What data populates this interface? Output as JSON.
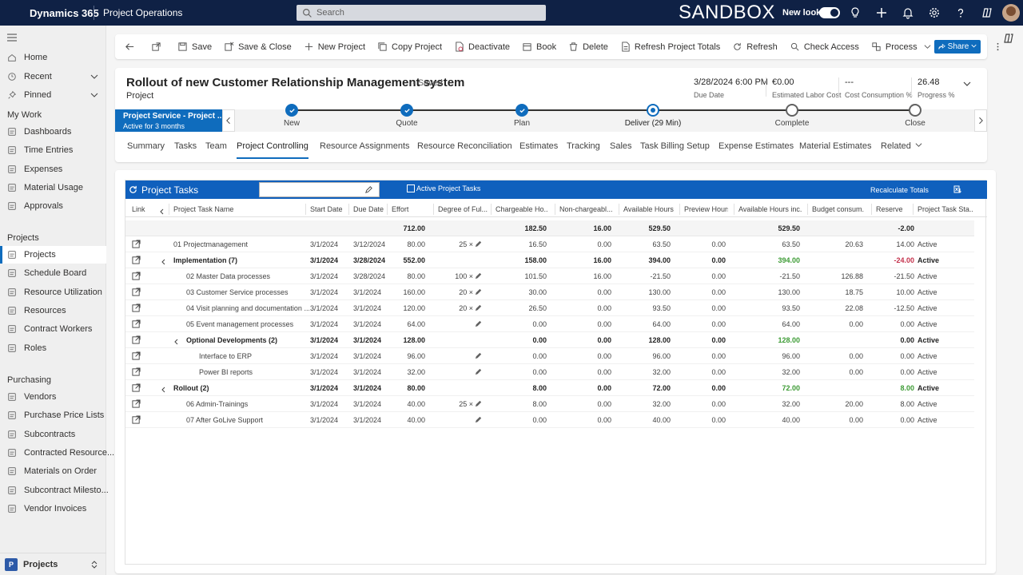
{
  "topbar": {
    "brand": "Dynamics 365",
    "app_name": "Project Operations",
    "search_placeholder": "Search",
    "environment": "SANDBOX",
    "new_look_label": "New look"
  },
  "sidebar": {
    "top_items": [
      {
        "label": "Home",
        "icon": "home-icon"
      },
      {
        "label": "Recent",
        "icon": "clock-icon"
      },
      {
        "label": "Pinned",
        "icon": "pin-icon"
      }
    ],
    "sections": [
      {
        "title": "My Work",
        "items": [
          "Dashboards",
          "Time Entries",
          "Expenses",
          "Material Usage",
          "Approvals"
        ]
      },
      {
        "title": "Projects",
        "items": [
          "Projects",
          "Schedule Board",
          "Resource Utilization",
          "Resources",
          "Contract Workers",
          "Roles"
        ]
      },
      {
        "title": "Purchasing",
        "items": [
          "Vendors",
          "Purchase Price Lists",
          "Subcontracts",
          "Contracted Resource...",
          "Materials on Order",
          "Subcontract Milesto...",
          "Vendor Invoices"
        ]
      }
    ],
    "area_badge": "P",
    "area_label": "Projects"
  },
  "commands": [
    "Save",
    "Save & Close",
    "New Project",
    "Copy Project",
    "Deactivate",
    "Book",
    "Delete",
    "Refresh Project Totals",
    "Refresh",
    "Check Access",
    "Process",
    "Share"
  ],
  "share_button": "Share",
  "header": {
    "title": "Rollout of new Customer Relationship Management system",
    "saved": "- Saved",
    "entity": "Project",
    "fields": [
      {
        "value": "3/28/2024 6:00 PM",
        "label": "Due Date"
      },
      {
        "value": "€0.00",
        "label": "Estimated Labor Cost"
      },
      {
        "value": "---",
        "label": "Cost Consumption %"
      },
      {
        "value": "26.48",
        "label": "Progress %"
      }
    ]
  },
  "bpf": {
    "stage_title": "Project Service - Project ...",
    "stage_sub": "Active for 3 months",
    "stages": [
      {
        "label": "New",
        "state": "done"
      },
      {
        "label": "Quote",
        "state": "done"
      },
      {
        "label": "Plan",
        "state": "done"
      },
      {
        "label": "Deliver  (29 Min)",
        "state": "current"
      },
      {
        "label": "Complete",
        "state": "todo"
      },
      {
        "label": "Close",
        "state": "todo"
      }
    ]
  },
  "tabs": [
    "Summary",
    "Tasks",
    "Team",
    "Project Controlling",
    "Resource Assignments",
    "Resource Reconciliation",
    "Estimates",
    "Tracking",
    "Sales",
    "Task Billing Setup",
    "Expense Estimates",
    "Material Estimates",
    "Related"
  ],
  "active_tab": "Project Controlling",
  "grid": {
    "title": "Project Tasks",
    "filter_label": "Active Project Tasks",
    "recalc_label": "Recalculate Totals",
    "columns": [
      "Link",
      "Project Task Name",
      "Start Date",
      "Due Date",
      "Effort",
      "Degree of Ful...",
      "Chargeable Ho...",
      "Non-chargeabl...",
      "Available Hours",
      "Preview Hours",
      "Available Hours inc...",
      "Budget consum...",
      "Reserve",
      "Project Task Sta..."
    ],
    "totals": {
      "effort": "712.00",
      "chargeable": "182.50",
      "nonchargeable": "16.00",
      "available": "529.50",
      "available_inc": "529.50",
      "reserve": "-2.00"
    },
    "rows": [
      {
        "name": "01 Projectmanagement",
        "indent": 0,
        "bold": false,
        "chevron": false,
        "start": "3/1/2024",
        "due": "3/12/2024",
        "effort": "80.00",
        "degree": "25 ×",
        "chargeable": "16.50",
        "nonchargeable": "0.00",
        "available": "63.50",
        "preview": "0.00",
        "available_inc": "63.50",
        "budget": "20.63",
        "reserve": "14.00",
        "status": "Active",
        "inc_color": "green",
        "res_color": "green"
      },
      {
        "name": "Implementation (7)",
        "indent": 0,
        "bold": true,
        "chevron": true,
        "start": "3/1/2024",
        "due": "3/28/2024",
        "effort": "552.00",
        "degree": "",
        "chargeable": "158.00",
        "nonchargeable": "16.00",
        "available": "394.00",
        "preview": "0.00",
        "available_inc": "394.00",
        "budget": "",
        "reserve": "-24.00",
        "status": "Active",
        "inc_color": "green",
        "res_color": "red"
      },
      {
        "name": "02 Master Data processes",
        "indent": 1,
        "bold": false,
        "chevron": false,
        "start": "3/1/2024",
        "due": "3/28/2024",
        "effort": "80.00",
        "degree": "100 ×",
        "chargeable": "101.50",
        "nonchargeable": "16.00",
        "available": "-21.50",
        "preview": "0.00",
        "available_inc": "-21.50",
        "budget": "126.88",
        "reserve": "-21.50",
        "status": "Active",
        "inc_color": "red",
        "res_color": "red"
      },
      {
        "name": "03 Customer Service processes",
        "indent": 1,
        "bold": false,
        "chevron": false,
        "start": "3/1/2024",
        "due": "3/1/2024",
        "effort": "160.00",
        "degree": "20 ×",
        "chargeable": "30.00",
        "nonchargeable": "0.00",
        "available": "130.00",
        "preview": "0.00",
        "available_inc": "130.00",
        "budget": "18.75",
        "reserve": "10.00",
        "status": "Active",
        "inc_color": "green",
        "res_color": "green"
      },
      {
        "name": "04 Visit planning and documentation ...",
        "indent": 1,
        "bold": false,
        "chevron": false,
        "start": "3/1/2024",
        "due": "3/1/2024",
        "effort": "120.00",
        "degree": "20 ×",
        "chargeable": "26.50",
        "nonchargeable": "0.00",
        "available": "93.50",
        "preview": "0.00",
        "available_inc": "93.50",
        "budget": "22.08",
        "reserve": "-12.50",
        "status": "Active",
        "inc_color": "green",
        "res_color": "red"
      },
      {
        "name": "05 Event management processes",
        "indent": 1,
        "bold": false,
        "chevron": false,
        "start": "3/1/2024",
        "due": "3/1/2024",
        "effort": "64.00",
        "degree": "",
        "chargeable": "0.00",
        "nonchargeable": "0.00",
        "available": "64.00",
        "preview": "0.00",
        "available_inc": "64.00",
        "budget": "0.00",
        "reserve": "0.00",
        "status": "Active",
        "inc_color": "green",
        "res_color": ""
      },
      {
        "name": "Optional Developments (2)",
        "indent": 1,
        "bold": true,
        "chevron": true,
        "start": "3/1/2024",
        "due": "3/1/2024",
        "effort": "128.00",
        "degree": "",
        "chargeable": "0.00",
        "nonchargeable": "0.00",
        "available": "128.00",
        "preview": "0.00",
        "available_inc": "128.00",
        "budget": "",
        "reserve": "0.00",
        "status": "Active",
        "inc_color": "green",
        "res_color": ""
      },
      {
        "name": "Interface to ERP",
        "indent": 2,
        "bold": false,
        "chevron": false,
        "start": "3/1/2024",
        "due": "3/1/2024",
        "effort": "96.00",
        "degree": "",
        "chargeable": "0.00",
        "nonchargeable": "0.00",
        "available": "96.00",
        "preview": "0.00",
        "available_inc": "96.00",
        "budget": "0.00",
        "reserve": "0.00",
        "status": "Active",
        "inc_color": "green",
        "res_color": ""
      },
      {
        "name": "Power BI reports",
        "indent": 2,
        "bold": false,
        "chevron": false,
        "start": "3/1/2024",
        "due": "3/1/2024",
        "effort": "32.00",
        "degree": "",
        "chargeable": "0.00",
        "nonchargeable": "0.00",
        "available": "32.00",
        "preview": "0.00",
        "available_inc": "32.00",
        "budget": "0.00",
        "reserve": "0.00",
        "status": "Active",
        "inc_color": "green",
        "res_color": ""
      },
      {
        "name": "Rollout (2)",
        "indent": 0,
        "bold": true,
        "chevron": true,
        "start": "3/1/2024",
        "due": "3/1/2024",
        "effort": "80.00",
        "degree": "",
        "chargeable": "8.00",
        "nonchargeable": "0.00",
        "available": "72.00",
        "preview": "0.00",
        "available_inc": "72.00",
        "budget": "",
        "reserve": "8.00",
        "status": "Active",
        "inc_color": "green",
        "res_color": "green"
      },
      {
        "name": "06 Admin-Trainings",
        "indent": 1,
        "bold": false,
        "chevron": false,
        "start": "3/1/2024",
        "due": "3/1/2024",
        "effort": "40.00",
        "degree": "25 ×",
        "chargeable": "8.00",
        "nonchargeable": "0.00",
        "available": "32.00",
        "preview": "0.00",
        "available_inc": "32.00",
        "budget": "20.00",
        "reserve": "8.00",
        "status": "Active",
        "inc_color": "green",
        "res_color": "green"
      },
      {
        "name": "07 After GoLive Support",
        "indent": 1,
        "bold": false,
        "chevron": false,
        "start": "3/1/2024",
        "due": "3/1/2024",
        "effort": "40.00",
        "degree": "",
        "chargeable": "0.00",
        "nonchargeable": "0.00",
        "available": "40.00",
        "preview": "0.00",
        "available_inc": "40.00",
        "budget": "0.00",
        "reserve": "0.00",
        "status": "Active",
        "inc_color": "green",
        "res_color": ""
      }
    ]
  },
  "colors": {
    "topbar": "#0f2145",
    "accent": "#0f6cbd",
    "grid_header": "#1060bd",
    "positive": "#3d9b35",
    "negative": "#c4314b"
  }
}
